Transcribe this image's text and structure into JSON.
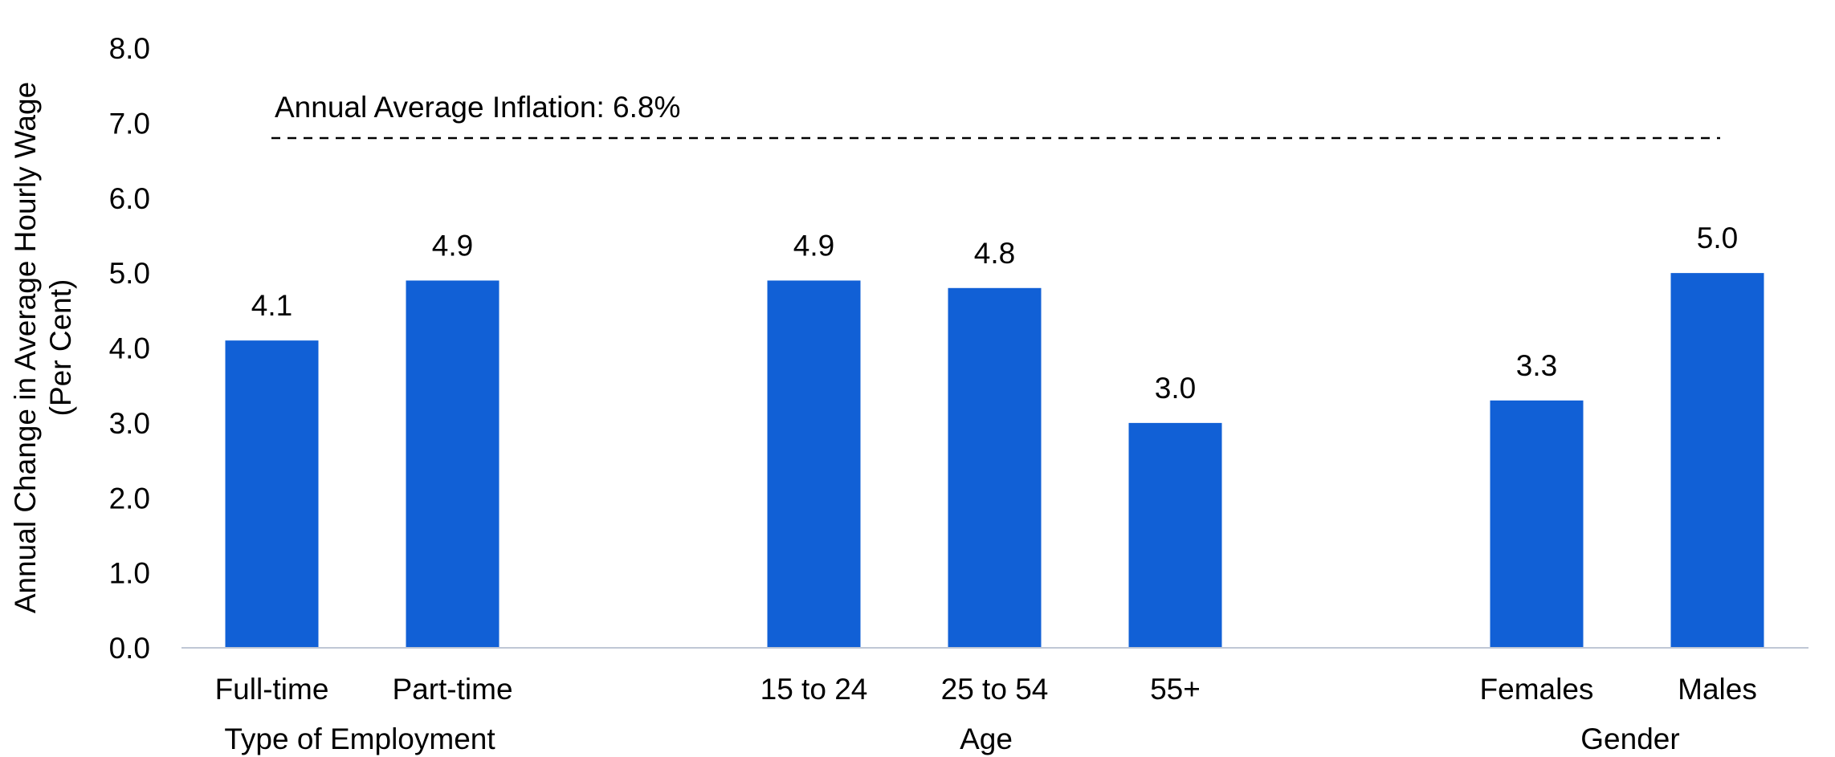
{
  "chart_data": {
    "type": "bar",
    "ylabel": "Annual Change in Average Hourly Wage\n(Per Cent)",
    "ylim": [
      0,
      8
    ],
    "yticks": [
      "0.0",
      "1.0",
      "2.0",
      "3.0",
      "4.0",
      "5.0",
      "6.0",
      "7.0",
      "8.0"
    ],
    "grid": false,
    "bar_color": "#1160D6",
    "groups": [
      {
        "label": "Type of Employment",
        "categories": [
          "Full-time",
          "Part-time"
        ],
        "values": [
          4.1,
          4.9
        ],
        "value_labels": [
          "4.1",
          "4.9"
        ]
      },
      {
        "label": "Age",
        "categories": [
          "15 to 24",
          "25 to 54",
          "55+"
        ],
        "values": [
          4.9,
          4.8,
          3.0
        ],
        "value_labels": [
          "4.9",
          "4.8",
          "3.0"
        ]
      },
      {
        "label": "Gender",
        "categories": [
          "Females",
          "Males"
        ],
        "values": [
          3.3,
          5.0
        ],
        "value_labels": [
          "3.3",
          "5.0"
        ]
      }
    ],
    "reference_line": {
      "label": "Annual Average Inflation: 6.8%",
      "value": 6.8,
      "style": "dashed"
    }
  }
}
